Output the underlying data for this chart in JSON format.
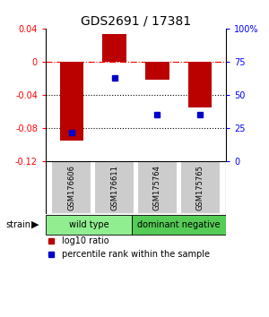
{
  "title": "GDS2691 / 17381",
  "samples": [
    "GSM176606",
    "GSM176611",
    "GSM175764",
    "GSM175765"
  ],
  "log10_ratio": [
    -0.095,
    0.033,
    -0.022,
    -0.055
  ],
  "percentile_rank": [
    22,
    63,
    35,
    35
  ],
  "groups": [
    {
      "label": "wild type",
      "indices": [
        0,
        1
      ],
      "color": "#90ee90"
    },
    {
      "label": "dominant negative",
      "indices": [
        2,
        3
      ],
      "color": "#55cc55"
    }
  ],
  "bar_color": "#bb0000",
  "dot_color": "#0000cc",
  "ylim_left": [
    -0.12,
    0.04
  ],
  "ylim_right": [
    0,
    100
  ],
  "yticks_left": [
    -0.12,
    -0.08,
    -0.04,
    0,
    0.04
  ],
  "yticks_right": [
    0,
    25,
    50,
    75,
    100
  ],
  "ytick_labels_right": [
    "0",
    "25",
    "50",
    "75",
    "100%"
  ],
  "dotted_lines": [
    -0.04,
    -0.08
  ],
  "bar_width": 0.55,
  "background_color": "#ffffff",
  "legend_items": [
    {
      "color": "#bb0000",
      "label": "log10 ratio"
    },
    {
      "color": "#0000cc",
      "label": "percentile rank within the sample"
    }
  ],
  "strain_label": "strain",
  "arrow_char": "▶",
  "sample_box_color": "#cccccc",
  "sample_box_edge": "#888888"
}
